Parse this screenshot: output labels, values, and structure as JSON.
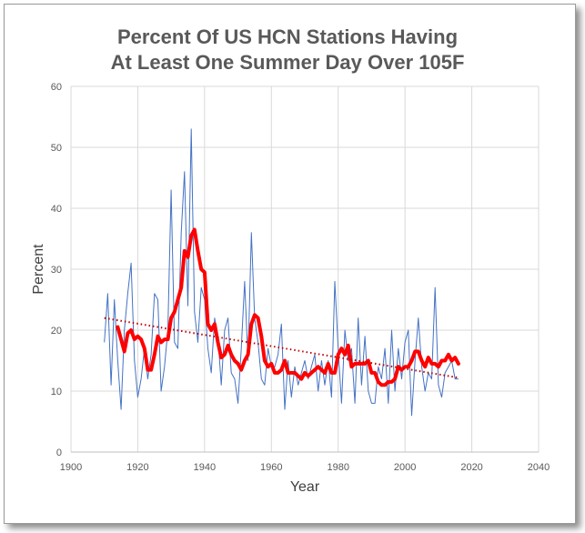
{
  "chart_data": {
    "type": "line",
    "title_lines": [
      "Percent Of US HCN Stations Having",
      "At Least One Summer Day Over 105F"
    ],
    "xlabel": "Year",
    "ylabel": "Percent",
    "xlim": [
      1900,
      2040
    ],
    "ylim": [
      0,
      60
    ],
    "xticks": [
      1900,
      1920,
      1940,
      1960,
      1980,
      2000,
      2020,
      2040
    ],
    "yticks": [
      0,
      10,
      20,
      30,
      40,
      50,
      60
    ],
    "grid": true,
    "legend": "none",
    "colors": {
      "annual": "#4472c4",
      "smoothed": "#ff0000",
      "trend": "#c00000",
      "grid": "#d9d9d9",
      "axis": "#bfbfbf"
    },
    "series": [
      {
        "style": "thin-line",
        "x": [
          1910,
          1911,
          1912,
          1913,
          1914,
          1915,
          1916,
          1917,
          1918,
          1919,
          1920,
          1921,
          1922,
          1923,
          1924,
          1925,
          1926,
          1927,
          1928,
          1929,
          1930,
          1931,
          1932,
          1933,
          1934,
          1935,
          1936,
          1937,
          1938,
          1939,
          1940,
          1941,
          1942,
          1943,
          1944,
          1945,
          1946,
          1947,
          1948,
          1949,
          1950,
          1951,
          1952,
          1953,
          1954,
          1955,
          1956,
          1957,
          1958,
          1959,
          1960,
          1961,
          1962,
          1963,
          1964,
          1965,
          1966,
          1967,
          1968,
          1969,
          1970,
          1971,
          1972,
          1973,
          1974,
          1975,
          1976,
          1977,
          1978,
          1979,
          1980,
          1981,
          1982,
          1983,
          1984,
          1985,
          1986,
          1987,
          1988,
          1989,
          1990,
          1991,
          1992,
          1993,
          1994,
          1995,
          1996,
          1997,
          1998,
          1999,
          2000,
          2001,
          2002,
          2003,
          2004,
          2005,
          2006,
          2007,
          2008,
          2009,
          2010,
          2011,
          2012,
          2013,
          2014,
          2015,
          2016
        ],
        "y": [
          18,
          26,
          11,
          25,
          15,
          7,
          20,
          26,
          31,
          15,
          9,
          12,
          17,
          12,
          16,
          26,
          25,
          10,
          14,
          20,
          43,
          18,
          17,
          36,
          46,
          24,
          53,
          23,
          18,
          27,
          25,
          17,
          13,
          22,
          19,
          11,
          20,
          22,
          13,
          12,
          8,
          17,
          28,
          15,
          36,
          22,
          18,
          12,
          11,
          17,
          14,
          14,
          16,
          21,
          7,
          15,
          9,
          14,
          11,
          13,
          15,
          12,
          14,
          16,
          10,
          15,
          11,
          15,
          9,
          28,
          17,
          8,
          20,
          15,
          17,
          8,
          22,
          11,
          19,
          10,
          8,
          8,
          14,
          12,
          17,
          8,
          20,
          10,
          17,
          12,
          18,
          20,
          6,
          15,
          22,
          14,
          10,
          13,
          12,
          27,
          11,
          9,
          13,
          14,
          15,
          12,
          12
        ]
      },
      {
        "style": "thick-line",
        "x": [
          1914,
          1916,
          1917,
          1918,
          1919,
          1920,
          1921,
          1922,
          1923,
          1924,
          1925,
          1926,
          1927,
          1928,
          1929,
          1930,
          1931,
          1932,
          1933,
          1934,
          1935,
          1936,
          1937,
          1938,
          1939,
          1940,
          1941,
          1942,
          1943,
          1944,
          1945,
          1946,
          1947,
          1948,
          1949,
          1950,
          1951,
          1952,
          1953,
          1954,
          1955,
          1956,
          1957,
          1958,
          1959,
          1960,
          1961,
          1962,
          1963,
          1964,
          1965,
          1966,
          1967,
          1968,
          1969,
          1970,
          1971,
          1972,
          1973,
          1974,
          1975,
          1976,
          1977,
          1978,
          1979,
          1980,
          1981,
          1982,
          1983,
          1984,
          1985,
          1986,
          1987,
          1988,
          1989,
          1990,
          1991,
          1992,
          1993,
          1994,
          1995,
          1996,
          1997,
          1998,
          1999,
          2000,
          2001,
          2002,
          2003,
          2004,
          2005,
          2006,
          2007,
          2008,
          2009,
          2010,
          2011,
          2012,
          2013,
          2014,
          2015,
          2016
        ],
        "y": [
          20.5,
          16.5,
          19.5,
          20,
          18.5,
          19,
          18.5,
          17,
          13.5,
          13.5,
          16,
          19,
          18,
          18.5,
          18.5,
          22,
          23,
          25,
          27,
          33,
          32,
          35.5,
          36.5,
          33,
          30,
          29.5,
          21,
          20,
          21,
          18,
          15.5,
          16,
          17.5,
          16,
          15,
          14.5,
          13.5,
          15,
          16,
          21,
          22.5,
          22,
          19,
          15,
          14,
          14.5,
          13,
          13,
          13.5,
          15,
          13,
          13,
          13,
          12.5,
          12,
          13,
          12.5,
          13,
          13.5,
          14,
          13.5,
          13,
          14.5,
          13,
          13,
          16,
          17,
          16,
          17.5,
          14,
          14.5,
          14.5,
          14.5,
          14.5,
          15,
          13,
          13,
          11.5,
          11,
          11,
          11.5,
          11.5,
          12,
          14,
          13.5,
          14,
          14,
          15,
          16.5,
          16.5,
          15,
          14,
          15.5,
          14.5,
          14.5,
          14,
          15,
          15,
          16,
          15,
          15.5,
          14.5
        ]
      },
      {
        "style": "dotted-trend",
        "x": [
          1910,
          2016
        ],
        "y": [
          22,
          12.2
        ]
      }
    ]
  }
}
